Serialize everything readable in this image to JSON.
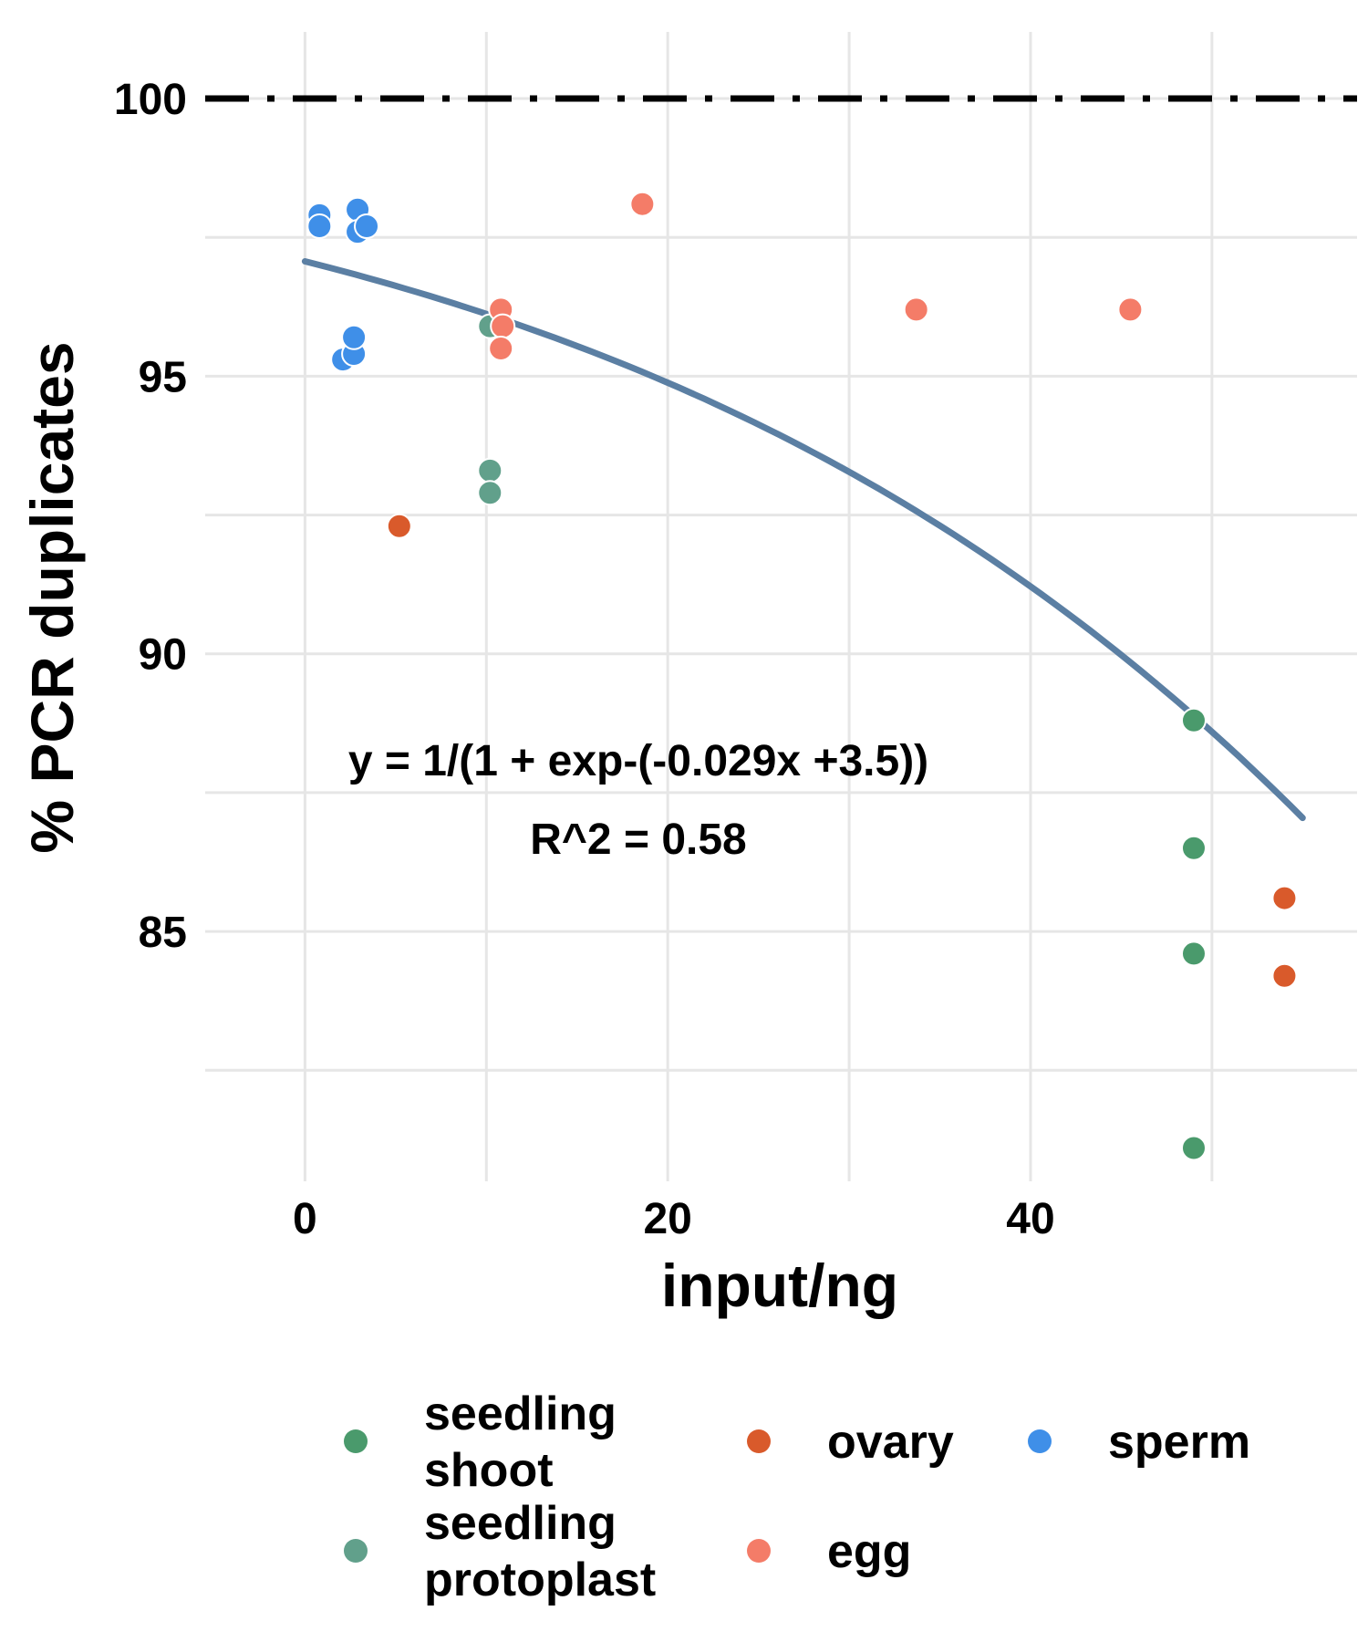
{
  "chart_data": {
    "type": "scatter",
    "xlabel": "input/ng",
    "ylabel": "% PCR duplicates",
    "xlim": [
      -5.5,
      58
    ],
    "ylim": [
      80.5,
      101.2
    ],
    "x_ticks": [
      0,
      20,
      40
    ],
    "y_ticks": [
      85,
      90,
      95,
      100
    ],
    "grid": true,
    "reference_line": {
      "y": 100,
      "style": "dash-dot"
    },
    "annotations": [
      "y = 1/(1 + exp-(-0.029x +3.5))",
      "R^2 = 0.58"
    ],
    "fit": {
      "label": "y = 1/(1 + exp-(-0.029x +3.5))",
      "r2_label": "R^2 = 0.58",
      "slope": -0.029,
      "intercept": 3.5,
      "x_range": [
        0,
        55
      ],
      "color": "#5b7fa3"
    },
    "legend": {
      "placement": "bottom"
    },
    "series": [
      {
        "name": "seedling shoot",
        "name_lines": [
          "seedling",
          "shoot"
        ],
        "color": "#4a9a6c",
        "points": [
          [
            49,
            88.8
          ],
          [
            49,
            86.5
          ],
          [
            49,
            84.6
          ],
          [
            49,
            81.1
          ]
        ]
      },
      {
        "name": "seedling protoplast",
        "name_lines": [
          "seedling",
          "protoplast"
        ],
        "color": "#61a08b",
        "points": [
          [
            10.2,
            95.9
          ],
          [
            10.2,
            93.3
          ],
          [
            10.2,
            92.9
          ]
        ]
      },
      {
        "name": "ovary",
        "name_lines": [
          "ovary"
        ],
        "color": "#d95a2b",
        "points": [
          [
            5.2,
            92.3
          ],
          [
            54,
            85.6
          ],
          [
            54,
            84.2
          ]
        ]
      },
      {
        "name": "egg",
        "name_lines": [
          "egg"
        ],
        "color": "#f47c68",
        "points": [
          [
            10.8,
            96.2
          ],
          [
            10.9,
            95.9
          ],
          [
            10.8,
            95.5
          ],
          [
            18.6,
            98.1
          ],
          [
            33.7,
            96.2
          ],
          [
            45.5,
            96.2
          ]
        ]
      },
      {
        "name": "sperm",
        "name_lines": [
          "sperm"
        ],
        "color": "#3f8fe8",
        "points": [
          [
            0.8,
            97.9
          ],
          [
            0.8,
            97.7
          ],
          [
            2.9,
            98.0
          ],
          [
            2.9,
            97.6
          ],
          [
            3.4,
            97.7
          ],
          [
            2.1,
            95.3
          ],
          [
            2.7,
            95.4
          ],
          [
            2.7,
            95.7
          ]
        ]
      }
    ]
  }
}
